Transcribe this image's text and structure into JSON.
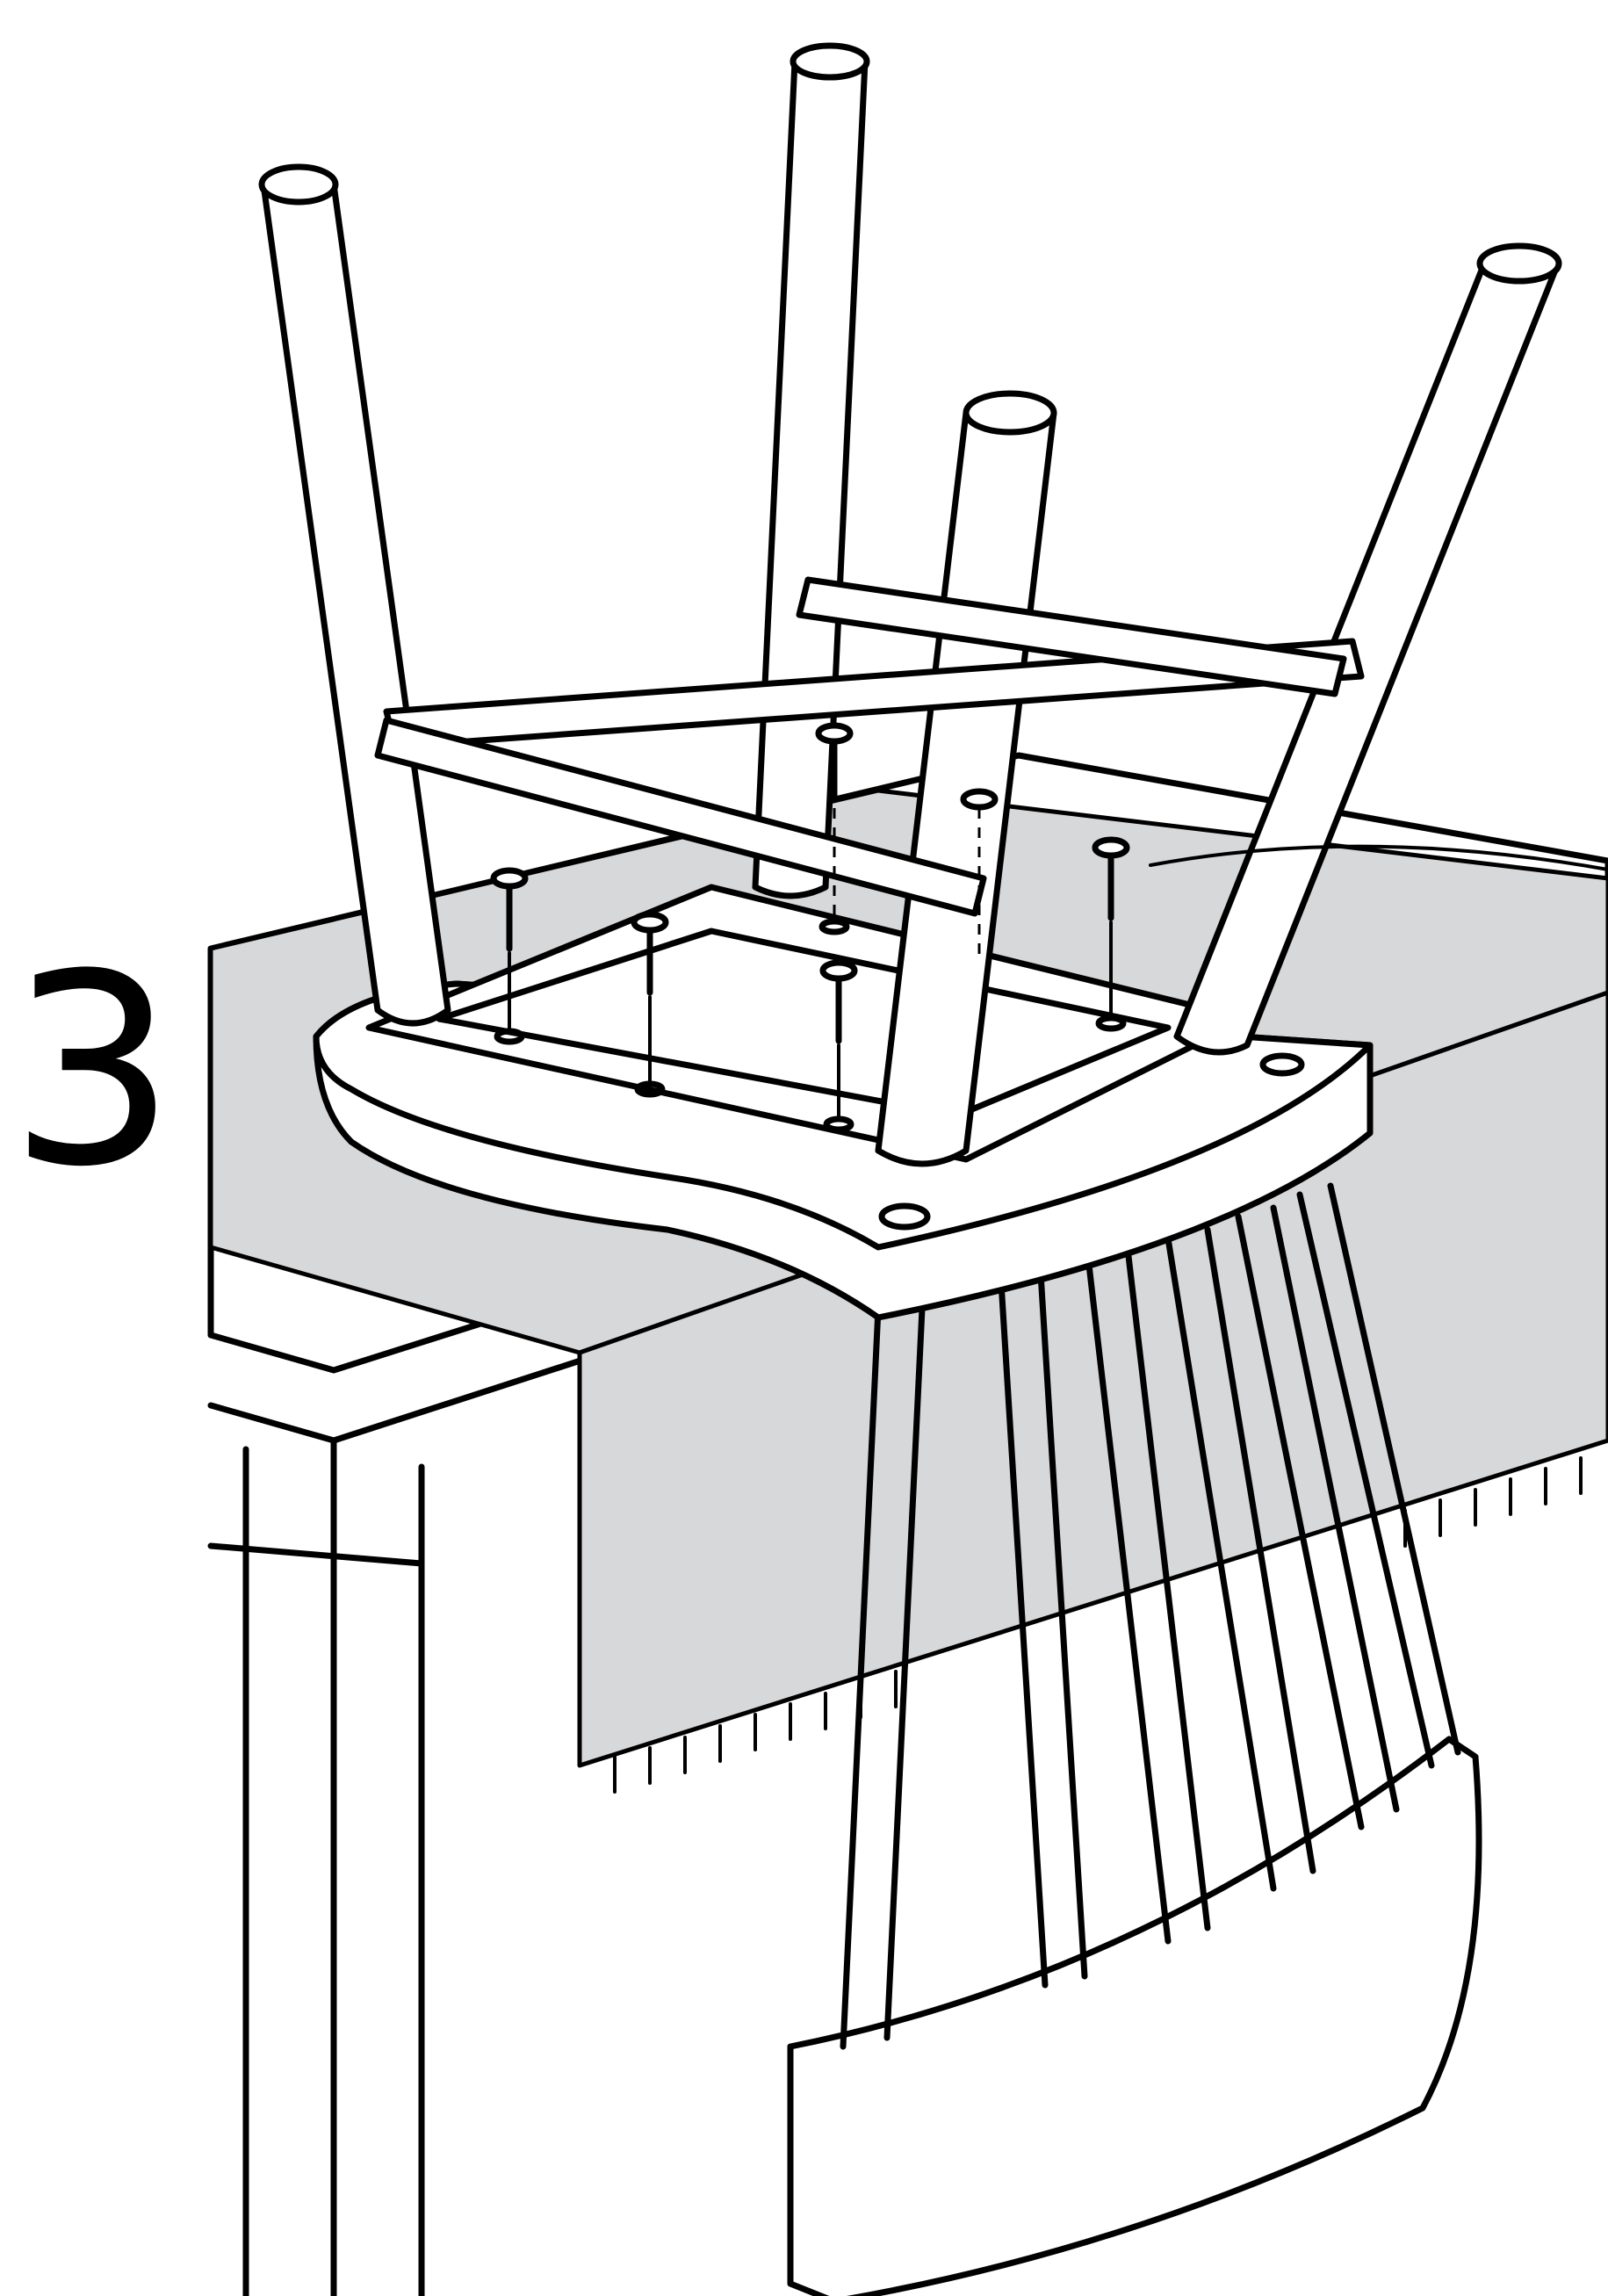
{
  "step": {
    "number": "3"
  },
  "parts": {
    "screw_icon": "phillips-screw-icon",
    "screw_count": 7
  },
  "colors": {
    "line": "#000000",
    "tablecloth": "#d7d8da",
    "background": "#ffffff"
  }
}
